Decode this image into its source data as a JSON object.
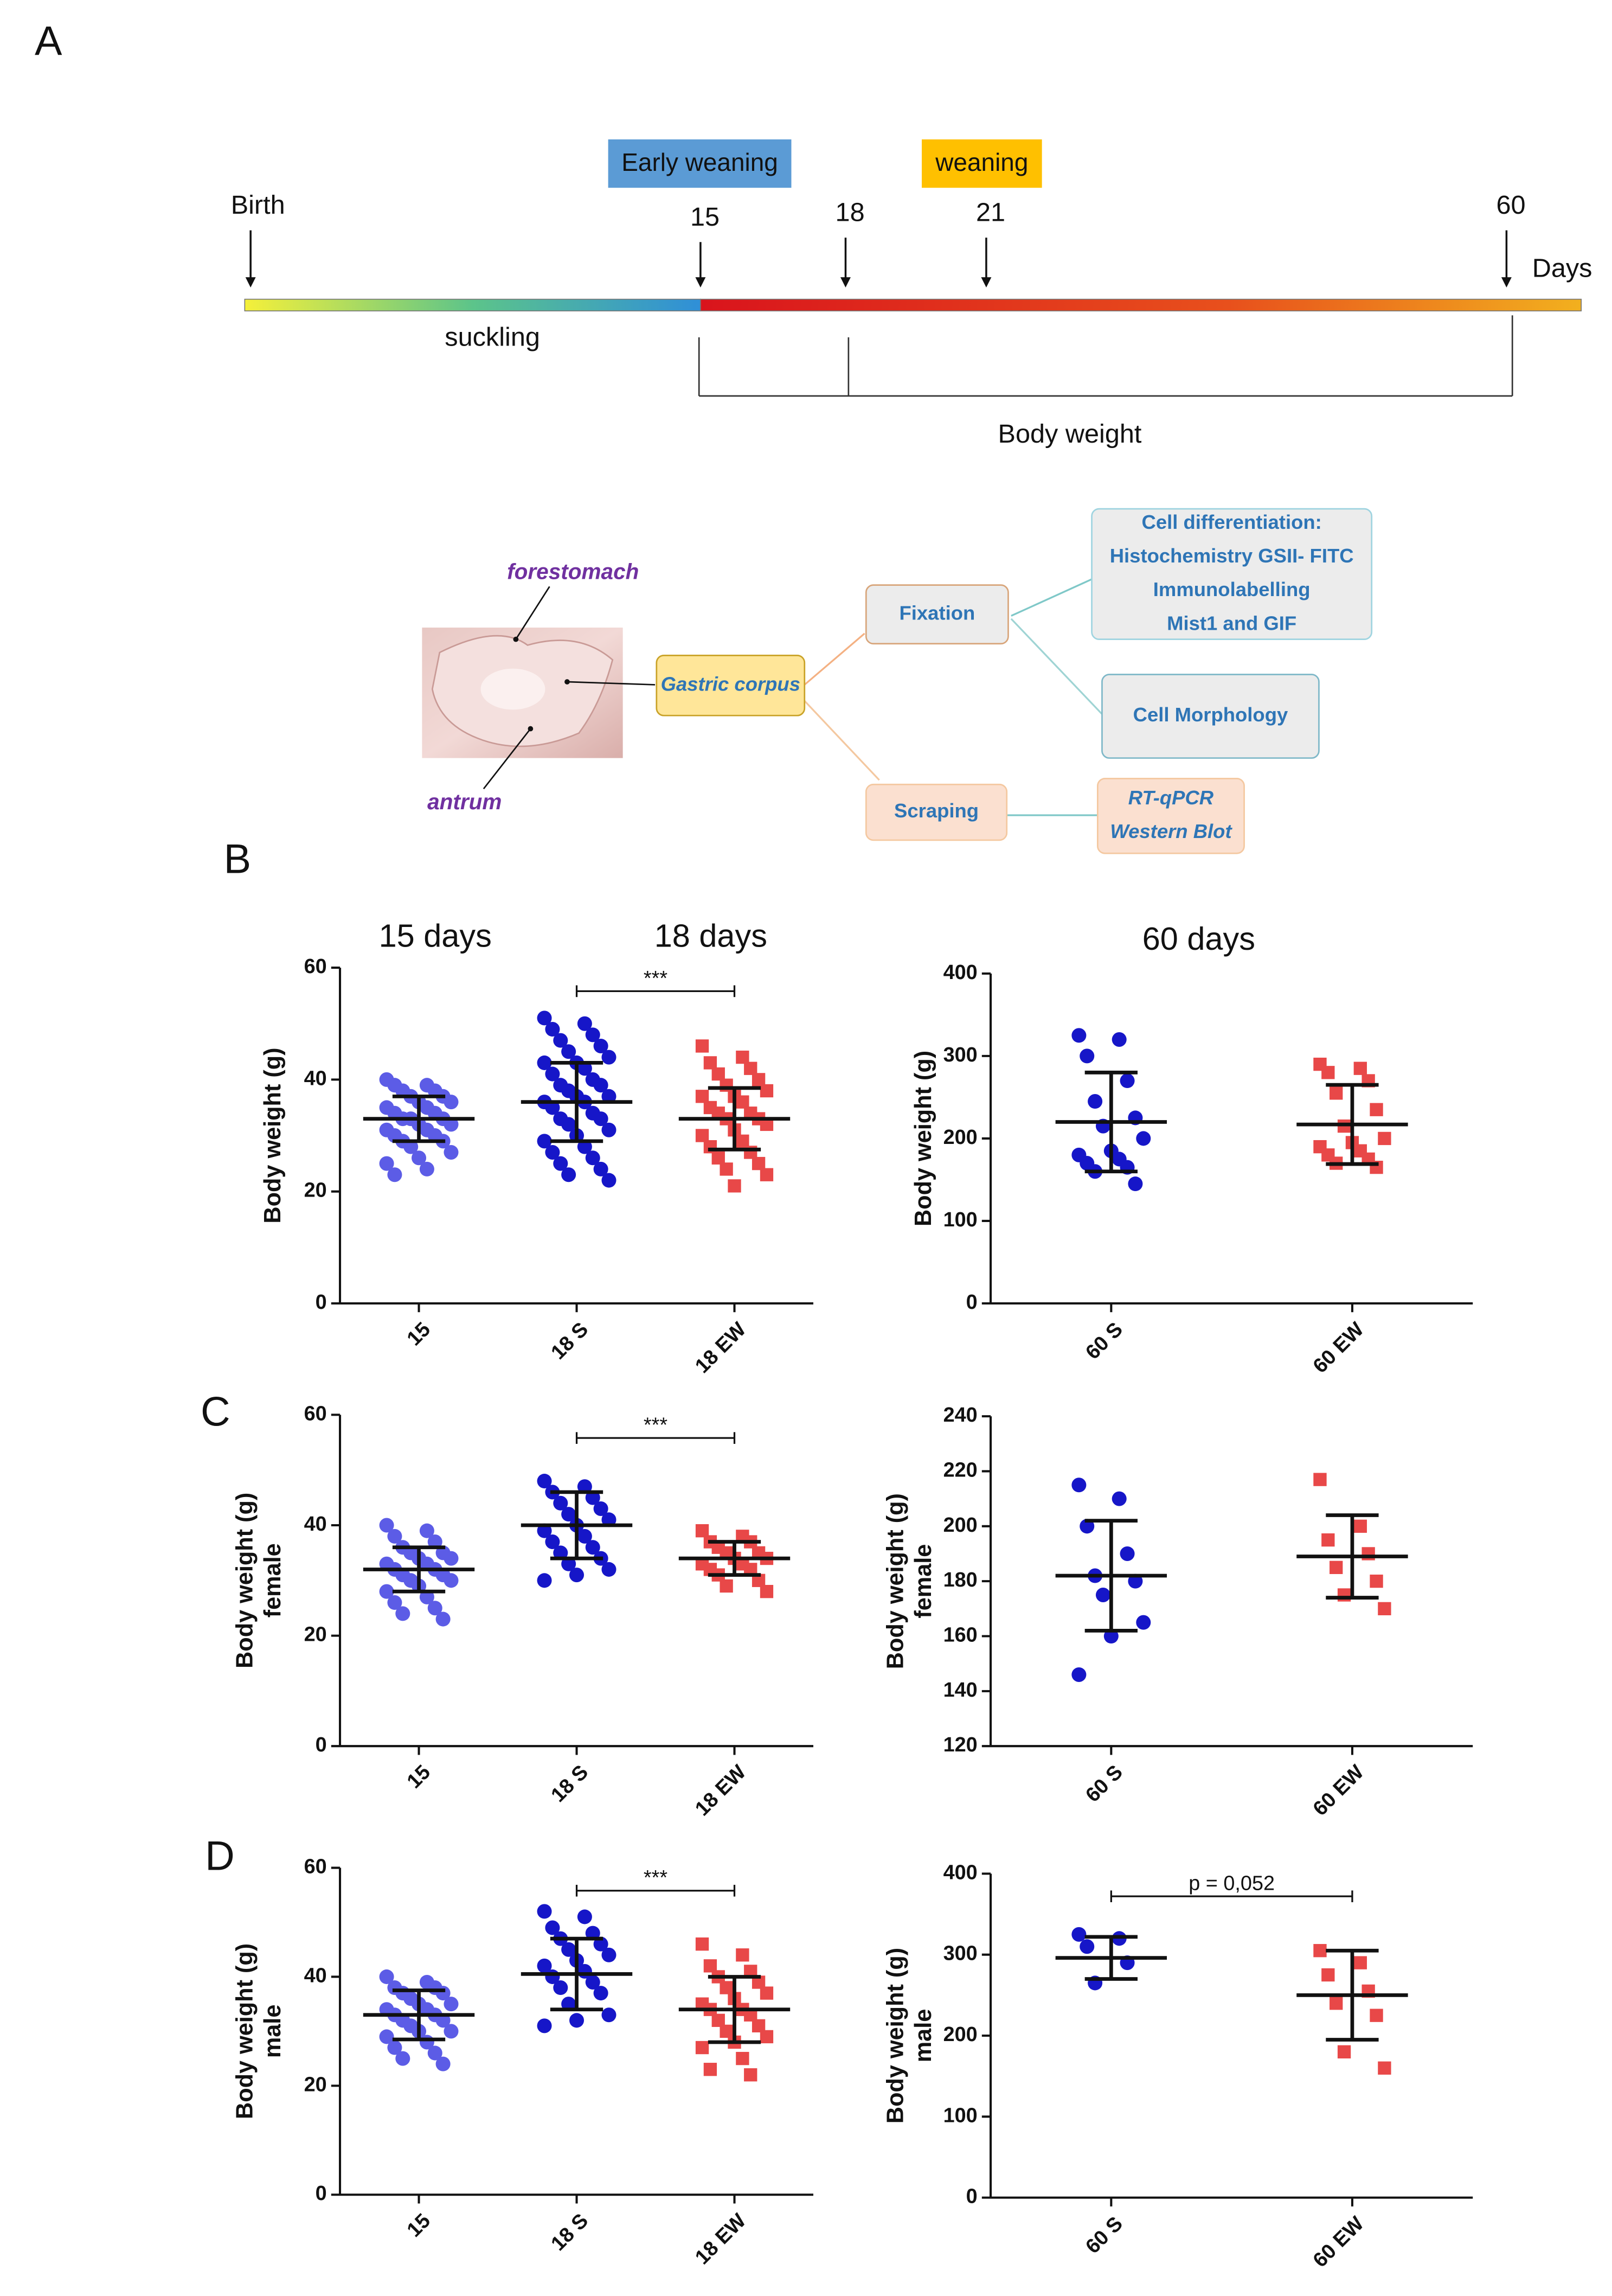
{
  "panel_labels": [
    "A",
    "B",
    "C",
    "D"
  ],
  "timeline": {
    "tags": [
      "Early weaning",
      "weaning"
    ],
    "events": [
      "Birth",
      15,
      18,
      21,
      60
    ],
    "unit": "Days",
    "phase": "suckling",
    "bracket": "Body weight"
  },
  "diagram": {
    "labels": [
      "forestomach",
      "antrum"
    ],
    "nodes": [
      {
        "lines": [
          "Gastric corpus"
        ]
      },
      {
        "lines": [
          "Fixation"
        ]
      },
      {
        "lines": [
          "Scraping"
        ]
      },
      {
        "lines": [
          "Cell differentiation:",
          "Histochemistry GSII- FITC",
          "Immunolabelling",
          "Mist1 and GIF"
        ]
      },
      {
        "lines": [
          "Cell Morphology"
        ]
      },
      {
        "lines": [
          "RT-qPCR",
          "Western Blot"
        ]
      }
    ]
  },
  "chart_data": [
    {
      "type": "dotplot",
      "subtitles": [
        "15 days",
        "18 days"
      ],
      "ylabel": [
        "Body weight (g)"
      ],
      "ylim": [
        0,
        60
      ],
      "yticks": [
        0,
        20,
        40,
        60
      ],
      "categories": [
        "15",
        "18 S",
        "18 EW"
      ],
      "colors": [
        "#5c5ce6",
        "#1616c8",
        "#e84848"
      ],
      "markers": [
        "circle",
        "circle",
        "square"
      ],
      "points": [
        [
          40,
          39,
          39,
          38,
          38,
          37,
          37,
          36,
          36,
          35,
          35,
          34,
          34,
          33,
          33,
          33,
          32,
          32,
          31,
          31,
          30,
          30,
          29,
          29,
          28,
          27,
          26,
          25,
          24,
          23
        ],
        [
          51,
          50,
          49,
          48,
          47,
          46,
          45,
          44,
          43,
          43,
          42,
          41,
          40,
          39,
          39,
          38,
          37,
          37,
          36,
          36,
          35,
          34,
          33,
          33,
          32,
          31,
          30,
          29,
          28,
          27,
          26,
          25,
          24,
          23,
          22
        ],
        [
          46,
          44,
          43,
          42,
          41,
          40,
          39,
          38,
          37,
          37,
          36,
          35,
          34,
          34,
          33,
          33,
          32,
          31,
          30,
          29,
          28,
          27,
          26,
          25,
          24,
          23,
          21
        ]
      ],
      "means": [
        33,
        36,
        33
      ],
      "sds": [
        4,
        7,
        5.5
      ],
      "annotation": {
        "text": "***",
        "between": [
          "18 S",
          "18 EW"
        ]
      }
    },
    {
      "type": "dotplot",
      "subtitles": [
        "60 days"
      ],
      "ylabel": [
        "Body weight (g)"
      ],
      "ylim": [
        0,
        400
      ],
      "yticks": [
        0,
        100,
        200,
        300,
        400
      ],
      "categories": [
        "60 S",
        "60 EW"
      ],
      "colors": [
        "#1616c8",
        "#e84848"
      ],
      "markers": [
        "circle",
        "square"
      ],
      "points": [
        [
          325,
          320,
          300,
          270,
          245,
          225,
          215,
          200,
          185,
          180,
          175,
          170,
          165,
          160,
          145
        ],
        [
          290,
          285,
          280,
          270,
          255,
          235,
          215,
          200,
          195,
          190,
          185,
          180,
          175,
          170,
          165
        ]
      ],
      "means": [
        220,
        217
      ],
      "sds": [
        60,
        48
      ]
    },
    {
      "type": "dotplot",
      "ylabel": [
        "Body weight (g)",
        "female"
      ],
      "ylim": [
        0,
        60
      ],
      "yticks": [
        0,
        20,
        40,
        60
      ],
      "categories": [
        "15",
        "18 S",
        "18 EW"
      ],
      "colors": [
        "#5c5ce6",
        "#1616c8",
        "#e84848"
      ],
      "markers": [
        "circle",
        "circle",
        "square"
      ],
      "points": [
        [
          40,
          39,
          38,
          37,
          36,
          35,
          35,
          34,
          34,
          33,
          33,
          32,
          32,
          31,
          31,
          30,
          30,
          29,
          28,
          27,
          26,
          25,
          24,
          23
        ],
        [
          48,
          47,
          46,
          45,
          44,
          43,
          42,
          41,
          40,
          39,
          38,
          37,
          36,
          35,
          34,
          33,
          32,
          31,
          30
        ],
        [
          39,
          38,
          37,
          37,
          36,
          35,
          35,
          34,
          34,
          33,
          33,
          32,
          32,
          31,
          30,
          29,
          28
        ]
      ],
      "means": [
        32,
        40,
        34
      ],
      "sds": [
        4,
        6,
        3
      ],
      "annotation": {
        "text": "***",
        "between": [
          "18 S",
          "18 EW"
        ]
      }
    },
    {
      "type": "dotplot",
      "ylabel": [
        "Body weight (g)",
        "female"
      ],
      "ylim": [
        120,
        240
      ],
      "yticks": [
        120,
        140,
        160,
        180,
        200,
        220,
        240
      ],
      "categories": [
        "60 S",
        "60 EW"
      ],
      "colors": [
        "#1616c8",
        "#e84848"
      ],
      "markers": [
        "circle",
        "square"
      ],
      "points": [
        [
          215,
          210,
          200,
          190,
          182,
          180,
          175,
          165,
          160,
          146
        ],
        [
          217,
          200,
          195,
          190,
          185,
          180,
          175,
          170
        ]
      ],
      "means": [
        182,
        189
      ],
      "sds": [
        20,
        15
      ]
    },
    {
      "type": "dotplot",
      "ylabel": [
        "Body weight (g)",
        "male"
      ],
      "ylim": [
        0,
        60
      ],
      "yticks": [
        0,
        20,
        40,
        60
      ],
      "categories": [
        "15",
        "18 S",
        "18 EW"
      ],
      "colors": [
        "#5c5ce6",
        "#1616c8",
        "#e84848"
      ],
      "markers": [
        "circle",
        "circle",
        "square"
      ],
      "points": [
        [
          40,
          39,
          38,
          38,
          37,
          37,
          36,
          35,
          35,
          34,
          34,
          33,
          33,
          32,
          32,
          31,
          30,
          30,
          29,
          28,
          27,
          26,
          25,
          24
        ],
        [
          52,
          51,
          49,
          48,
          47,
          46,
          45,
          44,
          43,
          42,
          41,
          40,
          39,
          38,
          37,
          35,
          33,
          32,
          31
        ],
        [
          46,
          44,
          42,
          41,
          40,
          39,
          38,
          37,
          36,
          35,
          34,
          34,
          33,
          32,
          31,
          30,
          29,
          28,
          27,
          25,
          23,
          22
        ]
      ],
      "means": [
        33,
        40.5,
        34
      ],
      "sds": [
        4.5,
        6.5,
        6
      ],
      "annotation": {
        "text": "***",
        "between": [
          "18 S",
          "18 EW"
        ]
      }
    },
    {
      "type": "dotplot",
      "ylabel": [
        "Body weight (g)",
        "male"
      ],
      "ylim": [
        0,
        400
      ],
      "yticks": [
        0,
        100,
        200,
        300,
        400
      ],
      "categories": [
        "60 S",
        "60 EW"
      ],
      "colors": [
        "#1616c8",
        "#e84848"
      ],
      "markers": [
        "circle",
        "square"
      ],
      "points": [
        [
          325,
          320,
          310,
          290,
          265
        ],
        [
          305,
          290,
          275,
          255,
          240,
          225,
          180,
          160
        ]
      ],
      "means": [
        296,
        250
      ],
      "sds": [
        26,
        55
      ],
      "annotation": {
        "text": "p = 0,052",
        "between": [
          "60 S",
          "60 EW"
        ]
      }
    }
  ]
}
